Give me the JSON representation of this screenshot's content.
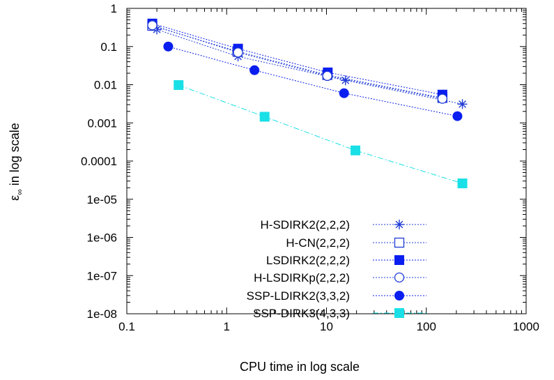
{
  "chart_data": {
    "type": "line",
    "xlabel": "CPU time in log scale",
    "ylabel_main": "ε",
    "ylabel_sub": "∞",
    "ylabel_rest": " in log scale",
    "xscale": "log",
    "yscale": "log",
    "xlim": [
      0.1,
      1000
    ],
    "ylim": [
      1e-08,
      1
    ],
    "grid": false,
    "legend_position": "bottom-center",
    "x_ticks": [
      {
        "value": 0.1,
        "label": "0.1"
      },
      {
        "value": 1,
        "label": "1"
      },
      {
        "value": 10,
        "label": "10"
      },
      {
        "value": 100,
        "label": "100"
      },
      {
        "value": 1000,
        "label": "1000"
      }
    ],
    "y_ticks": [
      {
        "value": 1,
        "label": "1"
      },
      {
        "value": 0.1,
        "label": "0.1"
      },
      {
        "value": 0.01,
        "label": "0.01"
      },
      {
        "value": 0.001,
        "label": "0.001"
      },
      {
        "value": 0.0001,
        "label": "0.0001"
      },
      {
        "value": 1e-05,
        "label": "1e-05"
      },
      {
        "value": 1e-06,
        "label": "1e-06"
      },
      {
        "value": 1e-07,
        "label": "1e-07"
      },
      {
        "value": 1e-08,
        "label": "1e-08"
      }
    ],
    "series": [
      {
        "name": "H-SDIRK2(2,2,2)",
        "marker": "asterisk",
        "color": "#1f3bd6",
        "dash": "2,2",
        "points": [
          [
            0.2,
            0.28
          ],
          [
            1.3,
            0.055
          ],
          [
            15.5,
            0.013
          ],
          [
            230,
            0.0031
          ]
        ]
      },
      {
        "name": "H-CN(2,2,2)",
        "marker": "open-square",
        "color": "#1f3bd6",
        "dash": "2,2",
        "points": [
          [
            0.18,
            0.35
          ],
          [
            1.28,
            0.075
          ],
          [
            10.2,
            0.018
          ],
          [
            145,
            0.0045
          ]
        ]
      },
      {
        "name": "LSDIRK2(2,2,2)",
        "marker": "filled-square",
        "color": "#0a1ef0",
        "dash": "2,2",
        "points": [
          [
            0.18,
            0.4
          ],
          [
            1.3,
            0.088
          ],
          [
            10.3,
            0.021
          ],
          [
            145,
            0.0055
          ]
        ]
      },
      {
        "name": "H-LSDIRKp(2,2,2)",
        "marker": "open-circle",
        "color": "#1f3bd6",
        "dash": "2,2",
        "points": [
          [
            0.18,
            0.36
          ],
          [
            1.3,
            0.07
          ],
          [
            10.2,
            0.017
          ],
          [
            145,
            0.0043
          ]
        ]
      },
      {
        "name": "SSP-LDIRK2(3,3,2)",
        "marker": "filled-circle",
        "color": "#0a1ef0",
        "dash": "2,2",
        "points": [
          [
            0.26,
            0.1
          ],
          [
            1.9,
            0.024
          ],
          [
            15,
            0.006
          ],
          [
            205,
            0.0015
          ]
        ]
      },
      {
        "name": "SSP-DIRK3(4,3,3)",
        "marker": "filled-square",
        "color": "#19e0e6",
        "dash": "8,3,2,3",
        "points": [
          [
            0.33,
            0.0098
          ],
          [
            2.4,
            0.00145
          ],
          [
            19.5,
            0.00019
          ],
          [
            230,
            2.6e-05
          ]
        ]
      }
    ]
  }
}
